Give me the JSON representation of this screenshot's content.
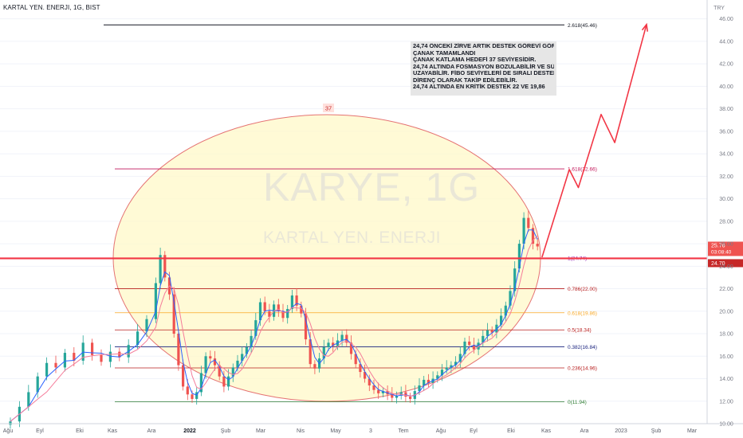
{
  "header": {
    "title": "KARTAL YEN. ENERJI, 1G, BIST"
  },
  "watermark": {
    "symbol": "KARYE, 1G",
    "name": "KARTAL YEN. ENERJI"
  },
  "note": {
    "lines": [
      "24,74 ÖNCEKİ ZİRVE ARTIK DESTEK GÖREVİ GÖRÜYOR",
      "ÇANAK TAMAMLANDI",
      "ÇANAK KATLAMA HEDEFİ 37 SEVİYESİDİR.",
      "24,74 ALTINDA FOSMASYON BOZULABİLİR VE SÜRE",
      "UZAYABİLİR. FİBO SEVİYELERİ DE SIRALI DESTEK VE",
      "DİRENÇ OLARAK TAKİP EDİLEBİLİR.",
      "24,74 ALTINDA EN KRİTİK DESTEK 22 VE 19,86"
    ]
  },
  "colors": {
    "candle_up": "#26a69a",
    "candle_down": "#ef5350",
    "ma_fast": "#2962ff",
    "ma_slow": "#f57c9a",
    "ellipse_fill": "#fff8c8",
    "ellipse_stroke": "#e57373",
    "arrow": "#f23645",
    "support": "#f23645",
    "price_badge": "#ef5350"
  },
  "chart_data": {
    "type": "candlestick",
    "currency": "TRY",
    "ylim": [
      10,
      47
    ],
    "y_ticks": [
      "10.00",
      "12.00",
      "14.00",
      "16.00",
      "18.00",
      "20.00",
      "22.00",
      "24.00",
      "26.00",
      "28.00",
      "30.00",
      "32.00",
      "34.00",
      "36.00",
      "38.00",
      "40.00",
      "42.00",
      "44.00",
      "46.00"
    ],
    "x_labels": [
      "Ağu",
      "Eyl",
      "Eki",
      "Kas",
      "Ara",
      "2022",
      "Şub",
      "Mar",
      "Nis",
      "May",
      "3",
      "Tem",
      "Ağu",
      "Eyl",
      "Eki",
      "Kas",
      "Ara",
      "2023",
      "Şub",
      "Mar"
    ],
    "x_label_bold": "2022",
    "fib_levels": [
      {
        "label": "2.618(45.46)",
        "value": 45.46,
        "color": "#131722"
      },
      {
        "label": "1.618(32.66)",
        "value": 32.66,
        "color": "#c2185b"
      },
      {
        "label": "1(24.74)",
        "value": 24.74,
        "color": "#9c27b0"
      },
      {
        "label": "0.786(22.00)",
        "value": 22.0,
        "color": "#b71c1c"
      },
      {
        "label": "0.618(19.86)",
        "value": 19.86,
        "color": "#f9a825"
      },
      {
        "label": "0.5(18.34)",
        "value": 18.34,
        "color": "#b71c1c"
      },
      {
        "label": "0.382(16.84)",
        "value": 16.84,
        "color": "#1a237e"
      },
      {
        "label": "0.236(14.96)",
        "value": 14.96,
        "color": "#b71c1c"
      },
      {
        "label": "0(11.94)",
        "value": 11.94,
        "color": "#2e7d32"
      }
    ],
    "support_line": 24.7,
    "ellipse_target": "37",
    "ellipse": {
      "x_from": "Kas",
      "x_to": "Kas",
      "y_low": 11.94,
      "y_high": 37
    },
    "last_price": "25.76",
    "countdown": "03:08:40",
    "support_price": "24.70",
    "price_path": [
      [
        0,
        10.2
      ],
      [
        2,
        11.5
      ],
      [
        4,
        12.8
      ],
      [
        6,
        14.2
      ],
      [
        8,
        15.4
      ],
      [
        10,
        15.0
      ],
      [
        12,
        16.3
      ],
      [
        14,
        15.6
      ],
      [
        16,
        17.2
      ],
      [
        18,
        16.1
      ],
      [
        20,
        15.5
      ],
      [
        22,
        16.4
      ],
      [
        24,
        15.9
      ],
      [
        26,
        17.0
      ],
      [
        28,
        18.2
      ],
      [
        30,
        19.3
      ],
      [
        32,
        22.5
      ],
      [
        33,
        25.0
      ],
      [
        34,
        23.0
      ],
      [
        35,
        21.5
      ],
      [
        36,
        18.0
      ],
      [
        37,
        15.2
      ],
      [
        38,
        13.3
      ],
      [
        39,
        12.6
      ],
      [
        40,
        12.2
      ],
      [
        41,
        12.8
      ],
      [
        42,
        14.5
      ],
      [
        43,
        16.0
      ],
      [
        44,
        15.8
      ],
      [
        45,
        15.2
      ],
      [
        46,
        14.2
      ],
      [
        47,
        13.3
      ],
      [
        48,
        14.2
      ],
      [
        49,
        15.0
      ],
      [
        50,
        15.6
      ],
      [
        51,
        16.2
      ],
      [
        52,
        16.8
      ],
      [
        53,
        17.8
      ],
      [
        54,
        19.2
      ],
      [
        55,
        20.8
      ],
      [
        56,
        20.0
      ],
      [
        57,
        19.5
      ],
      [
        58,
        20.6
      ],
      [
        59,
        20.0
      ],
      [
        60,
        19.4
      ],
      [
        61,
        20.2
      ],
      [
        62,
        21.4
      ],
      [
        63,
        20.5
      ],
      [
        64,
        19.8
      ],
      [
        65,
        17.5
      ],
      [
        66,
        15.3
      ],
      [
        67,
        14.9
      ],
      [
        68,
        15.8
      ],
      [
        69,
        16.8
      ],
      [
        70,
        17.2
      ],
      [
        71,
        16.9
      ],
      [
        72,
        17.4
      ],
      [
        73,
        17.9
      ],
      [
        74,
        17.2
      ],
      [
        75,
        16.2
      ],
      [
        76,
        15.3
      ],
      [
        77,
        14.6
      ],
      [
        78,
        14.0
      ],
      [
        79,
        13.4
      ],
      [
        80,
        13.0
      ],
      [
        81,
        12.7
      ],
      [
        82,
        12.9
      ],
      [
        83,
        12.6
      ],
      [
        84,
        12.3
      ],
      [
        85,
        12.5
      ],
      [
        86,
        12.8
      ],
      [
        87,
        12.4
      ],
      [
        88,
        12.2
      ],
      [
        89,
        12.9
      ],
      [
        90,
        13.4
      ],
      [
        91,
        13.9
      ],
      [
        92,
        13.6
      ],
      [
        93,
        14.0
      ],
      [
        94,
        14.3
      ],
      [
        95,
        14.8
      ],
      [
        96,
        15.0
      ],
      [
        97,
        15.2
      ],
      [
        98,
        15.5
      ],
      [
        99,
        16.2
      ],
      [
        100,
        17.3
      ],
      [
        101,
        17.0
      ],
      [
        102,
        16.6
      ],
      [
        103,
        17.2
      ],
      [
        104,
        17.8
      ],
      [
        105,
        18.3
      ],
      [
        106,
        18.1
      ],
      [
        107,
        18.8
      ],
      [
        108,
        19.6
      ],
      [
        109,
        20.5
      ],
      [
        110,
        21.8
      ],
      [
        111,
        23.8
      ],
      [
        112,
        26.0
      ],
      [
        113,
        28.3
      ],
      [
        114,
        27.4
      ],
      [
        115,
        26.0
      ],
      [
        116,
        25.76
      ]
    ],
    "projection": [
      [
        117,
        24.8
      ],
      [
        123,
        32.6
      ],
      [
        125,
        31.0
      ],
      [
        130,
        37.5
      ],
      [
        133,
        35.0
      ],
      [
        140,
        45.5
      ]
    ]
  }
}
